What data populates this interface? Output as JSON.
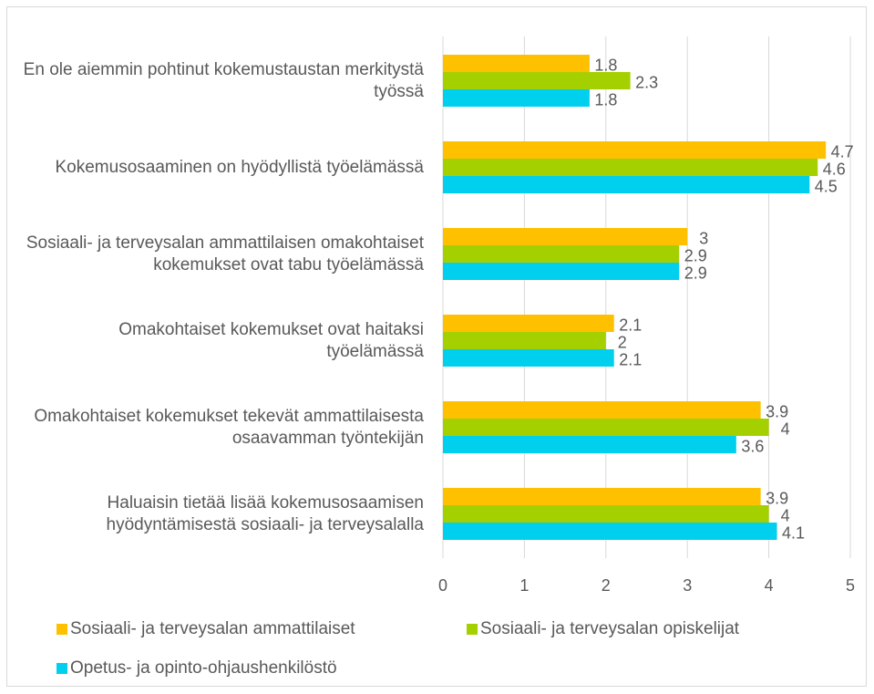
{
  "chart_data": {
    "type": "barh",
    "categories": [
      "En ole aiemmin pohtinut kokemustaustan merkitystä työssä",
      "Kokemusosaaminen on hyödyllistä työelämässä",
      "Sosiaali- ja terveysalan ammattilaisen omakohtaiset kokemukset ovat tabu työelämässä",
      "Omakohtaiset kokemukset ovat haitaksi työelämässä",
      "Omakohtaiset kokemukset tekevät ammattilaisesta osaavamman työntekijän",
      "Haluaisin tietää lisää kokemusosaamisen hyödyntämisestä sosiaali- ja terveysalalla"
    ],
    "series": [
      {
        "name": "Sosiaali- ja terveysalan ammattilaiset",
        "color": "#ffc000",
        "values": [
          1.8,
          4.7,
          3,
          2.1,
          3.9,
          3.9
        ]
      },
      {
        "name": "Sosiaali- ja terveysalan opiskelijat",
        "color": "#a5d000",
        "values": [
          2.3,
          4.6,
          2.9,
          2,
          4,
          4
        ]
      },
      {
        "name": "Opetus- ja opinto-ohjaushenkilöstö",
        "color": "#00d0ee",
        "values": [
          1.8,
          4.5,
          2.9,
          2.1,
          3.6,
          4.1
        ]
      }
    ],
    "xlim": [
      0,
      5
    ],
    "xticks": [
      0,
      1,
      2,
      3,
      4,
      5
    ],
    "grid": true,
    "legend": "bottom"
  }
}
